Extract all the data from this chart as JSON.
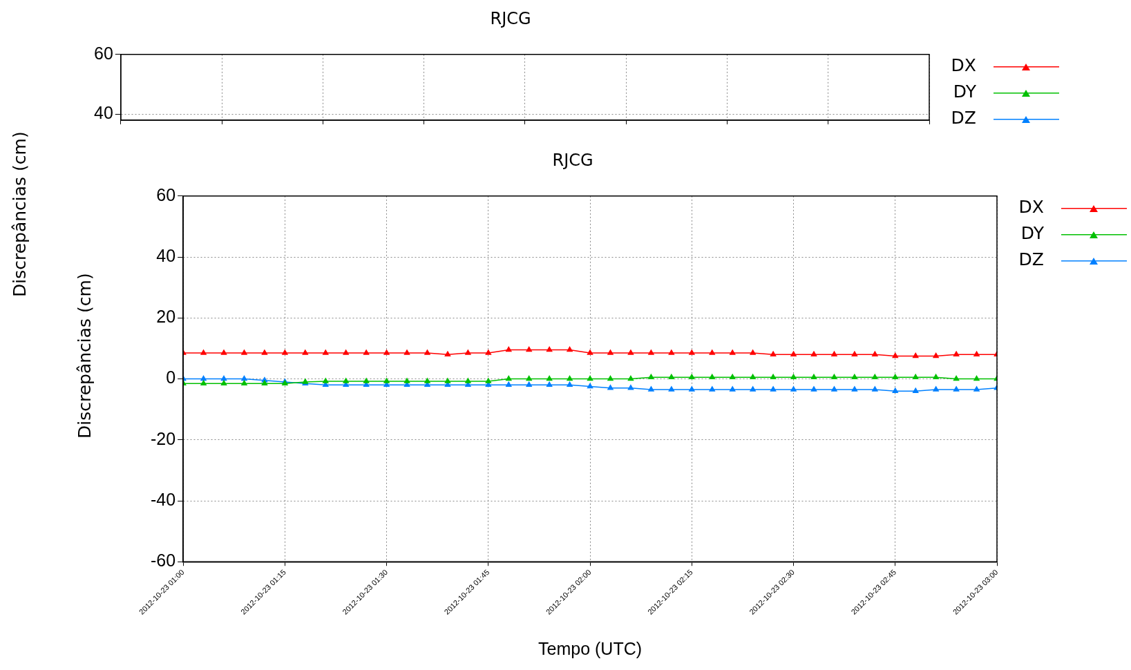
{
  "chart_data": [
    {
      "type": "line",
      "title": "RJCG",
      "ylabel": "Discrepâncias (cm)",
      "categories": [
        null,
        null,
        null,
        null,
        null,
        null,
        null,
        null,
        null
      ],
      "ylim": [
        38,
        60
      ],
      "yticks": [
        40,
        60
      ],
      "tick_labels": "y",
      "grid": true,
      "legend": "right",
      "marker": "triangle",
      "line_style": "solid",
      "series": [
        {
          "name": "DX",
          "color": "#ff0000",
          "values": [
            null,
            null,
            null,
            null,
            null,
            null,
            null,
            null,
            null
          ]
        },
        {
          "name": "DY",
          "color": "#00c000",
          "values": [
            null,
            null,
            null,
            null,
            null,
            null,
            null,
            null,
            null
          ]
        },
        {
          "name": "DZ",
          "color": "#0080ff",
          "values": [
            null,
            null,
            null,
            null,
            null,
            null,
            null,
            null,
            null
          ]
        }
      ]
    },
    {
      "type": "line",
      "title": "RJCG",
      "xlabel": "Tempo (UTC)",
      "ylabel": "Discrepâncias (cm)",
      "xlim": [
        "2012-10-23T01:00",
        "2012-10-23T03:00"
      ],
      "xticks": [
        {
          "value": "2012-10-23T01:00",
          "label": "2012-10-23 01:00"
        },
        {
          "value": "2012-10-23T01:15",
          "label": "2012-10-23 01:15"
        },
        {
          "value": "2012-10-23T01:30",
          "label": "2012-10-23 01:30"
        },
        {
          "value": "2012-10-23T01:45",
          "label": "2012-10-23 01:45"
        },
        {
          "value": "2012-10-23T02:00",
          "label": "2012-10-23 02:00"
        },
        {
          "value": "2012-10-23T02:15",
          "label": "2012-10-23 02:15"
        },
        {
          "value": "2012-10-23T02:30",
          "label": "2012-10-23 02:30"
        },
        {
          "value": "2012-10-23T02:45",
          "label": "2012-10-23 02:45"
        },
        {
          "value": "2012-10-23T03:00",
          "label": "2012-10-23 03:00"
        }
      ],
      "ylim": [
        -60,
        60
      ],
      "yticks": [
        -60,
        -40,
        -20,
        0,
        20,
        40,
        60
      ],
      "grid": true,
      "legend": "top right",
      "marker": "triangle",
      "line_style": "solid",
      "x": [
        "2012-10-23T01:00",
        "2012-10-23T01:03",
        "2012-10-23T01:06",
        "2012-10-23T01:09",
        "2012-10-23T01:12",
        "2012-10-23T01:15",
        "2012-10-23T01:18",
        "2012-10-23T01:21",
        "2012-10-23T01:24",
        "2012-10-23T01:27",
        "2012-10-23T01:30",
        "2012-10-23T01:33",
        "2012-10-23T01:36",
        "2012-10-23T01:39",
        "2012-10-23T01:42",
        "2012-10-23T01:45",
        "2012-10-23T01:48",
        "2012-10-23T01:51",
        "2012-10-23T01:54",
        "2012-10-23T01:57",
        "2012-10-23T02:00",
        "2012-10-23T02:03",
        "2012-10-23T02:06",
        "2012-10-23T02:09",
        "2012-10-23T02:12",
        "2012-10-23T02:15",
        "2012-10-23T02:18",
        "2012-10-23T02:21",
        "2012-10-23T02:24",
        "2012-10-23T02:27",
        "2012-10-23T02:30",
        "2012-10-23T02:33",
        "2012-10-23T02:36",
        "2012-10-23T02:39",
        "2012-10-23T02:42",
        "2012-10-23T02:45",
        "2012-10-23T02:48",
        "2012-10-23T02:51",
        "2012-10-23T02:54",
        "2012-10-23T02:57",
        "2012-10-23T03:00"
      ],
      "series": [
        {
          "name": "DX",
          "color": "#ff0000",
          "values": [
            8.5,
            8.5,
            8.5,
            8.5,
            8.5,
            8.5,
            8.5,
            8.5,
            8.5,
            8.5,
            8.5,
            8.5,
            8.5,
            8,
            8.5,
            8.5,
            9.5,
            9.5,
            9.5,
            9.5,
            8.5,
            8.5,
            8.5,
            8.5,
            8.5,
            8.5,
            8.5,
            8.5,
            8.5,
            8,
            8,
            8,
            8,
            8,
            8,
            7.5,
            7.5,
            7.5,
            8,
            8,
            8
          ]
        },
        {
          "name": "DY",
          "color": "#00c000",
          "values": [
            -1.5,
            -1.5,
            -1.5,
            -1.5,
            -1.5,
            -1.5,
            -1,
            -0.8,
            -0.8,
            -0.8,
            -0.8,
            -0.8,
            -0.8,
            -0.8,
            -0.8,
            -0.8,
            0,
            0,
            0,
            0,
            0,
            0,
            0,
            0.5,
            0.5,
            0.5,
            0.5,
            0.5,
            0.5,
            0.5,
            0.5,
            0.5,
            0.5,
            0.5,
            0.5,
            0.5,
            0.5,
            0.5,
            0,
            0,
            0
          ]
        },
        {
          "name": "DZ",
          "color": "#0080ff",
          "values": [
            0,
            0,
            0,
            0,
            -0.5,
            -1,
            -1.5,
            -2,
            -2,
            -2,
            -2,
            -2,
            -2,
            -2,
            -2,
            -2,
            -2,
            -2,
            -2,
            -2,
            -2.5,
            -3,
            -3,
            -3.5,
            -3.5,
            -3.5,
            -3.5,
            -3.5,
            -3.5,
            -3.5,
            -3.5,
            -3.5,
            -3.5,
            -3.5,
            -3.5,
            -4,
            -4,
            -3.5,
            -3.5,
            -3.5,
            -3
          ]
        }
      ]
    }
  ]
}
